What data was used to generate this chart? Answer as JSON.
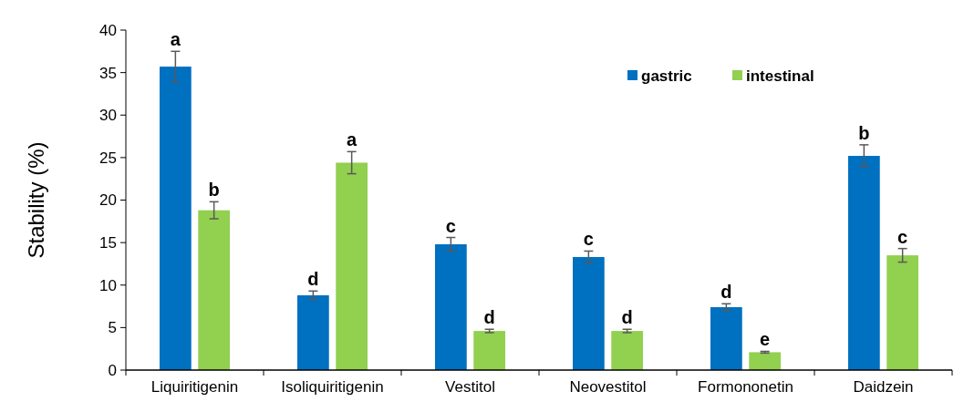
{
  "chart_data": {
    "type": "bar",
    "ylabel": "Stability (%)",
    "categories": [
      "Liquiritigenin",
      "Isoliquiritigenin",
      "Vestitol",
      "Neovestitol",
      "Formononetin",
      "Daidzein"
    ],
    "series": [
      {
        "name": "gastric",
        "color": "#0070c0",
        "values": [
          35.7,
          8.8,
          14.8,
          13.3,
          7.4,
          25.2
        ],
        "errors": [
          1.8,
          0.5,
          0.8,
          0.7,
          0.4,
          1.3
        ]
      },
      {
        "name": "intestinal",
        "color": "#92d050",
        "values": [
          18.8,
          24.4,
          4.6,
          4.6,
          2.1,
          13.5
        ],
        "errors": [
          1.0,
          1.3,
          0.2,
          0.2,
          0.1,
          0.8
        ]
      }
    ],
    "ylim": [
      0,
      40
    ],
    "yticks": [
      0,
      5,
      10,
      15,
      20,
      25,
      30,
      35,
      40
    ],
    "grid": false,
    "legend": "top right",
    "annotations": [
      {
        "text": "a",
        "x": "Liquiritigenin",
        "y": 35.7
      },
      {
        "text": "b",
        "x": "Liquiritigenin",
        "y": 18.8
      },
      {
        "text": "d",
        "x": "Isoliquiritigenin",
        "y": 8.8
      },
      {
        "text": "a",
        "x": "Isoliquiritigenin",
        "y": 24.4
      },
      {
        "text": "c",
        "x": "Vestitol",
        "y": 14.8
      },
      {
        "text": "d",
        "x": "Vestitol",
        "y": 4.6
      },
      {
        "text": "c",
        "x": "Neovestitol",
        "y": 13.3
      },
      {
        "text": "d",
        "x": "Neovestitol",
        "y": 4.6
      },
      {
        "text": "d",
        "x": "Formononetin",
        "y": 7.4
      },
      {
        "text": "e",
        "x": "Formononetin",
        "y": 2.1
      },
      {
        "text": "b",
        "x": "Daidzein",
        "y": 25.2
      },
      {
        "text": "c",
        "x": "Daidzein",
        "y": 13.5
      }
    ]
  }
}
